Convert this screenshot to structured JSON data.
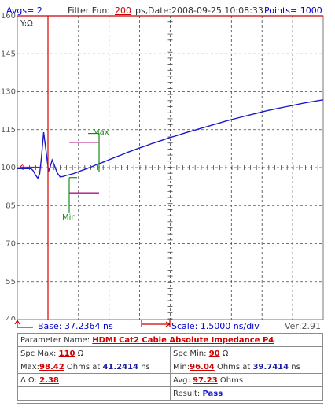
{
  "header": {
    "avgs": "Avgs= 2",
    "filter_label": "Filter Fun:",
    "filter_value": "200",
    "filter_unit": "ps,",
    "date": "Date:2008-09-25 10:08:33",
    "points": "Points= 1000"
  },
  "chart_data": {
    "type": "line",
    "ylabel": "Y:Ω",
    "ylim": [
      40,
      160
    ],
    "yticks": [
      "160",
      "145",
      "130",
      "115",
      "100",
      "85",
      "70",
      "55",
      "40"
    ],
    "series": [
      {
        "x": [
          0,
          4.5,
          5.2,
          6,
          6.7,
          7.3,
          7.9,
          8.6,
          9.4,
          10.2,
          10.8,
          11.4,
          12.1,
          13,
          14,
          15,
          16,
          17,
          18,
          19,
          20,
          22,
          24,
          26,
          28,
          30,
          32,
          34,
          36,
          38,
          40,
          42,
          44,
          46,
          48,
          50,
          52,
          54,
          56,
          58,
          60,
          62,
          64,
          66,
          68,
          70,
          72,
          74,
          76,
          78,
          80,
          82,
          84,
          86,
          88,
          90,
          92,
          94,
          96,
          98,
          100
        ],
        "y": [
          99.6,
          99.6,
          98.8,
          97.0,
          95.8,
          97.5,
          104.0,
          114.0,
          106.5,
          98.5,
          100.5,
          103.0,
          101.0,
          98.0,
          96.3,
          96.5,
          96.9,
          97.2,
          97.5,
          97.9,
          98.4,
          99.3,
          100.2,
          101.2,
          102.1,
          103.1,
          104.1,
          105.0,
          106.0,
          106.9,
          107.8,
          108.6,
          109.5,
          110.3,
          111.1,
          111.9,
          112.6,
          113.4,
          114.1,
          114.8,
          115.5,
          116.2,
          116.9,
          117.6,
          118.3,
          119.0,
          119.6,
          120.2,
          120.8,
          121.4,
          122.0,
          122.6,
          123.1,
          123.6,
          124.1,
          124.6,
          125.1,
          125.6,
          126.0,
          126.4,
          126.8
        ]
      }
    ],
    "spec_max": 110,
    "spec_min": 90,
    "max_label": "Max",
    "min_label": "Min"
  },
  "footer": {
    "base": "Base: 37.2364 ns",
    "scale": "Scale: 1.5000 ns/div",
    "version": "Ver:2.91"
  },
  "table": {
    "param_label": "Parameter Name:",
    "param_value": "HDMI Cat2 Cable Absolute Impedance P4",
    "spc_max_label": "Spc Max:",
    "spc_max_value": "110",
    "spc_max_unit": "Ω",
    "spc_min_label": "Spc Min:",
    "spc_min_value": "90",
    "spc_min_unit": "Ω",
    "max_label": "Max:",
    "max_value": "98.42",
    "max_mid": "Ohms at",
    "max_time": "41.2414",
    "max_unit": "ns",
    "min_label": "Min:",
    "min_value": "96.04",
    "min_mid": "Ohms at",
    "min_time": "39.7414",
    "min_unit": "ns",
    "delta_label": "Δ Ω:",
    "delta_value": "2.38",
    "avg_label": "Avg:",
    "avg_value": "97.23",
    "avg_unit": "Ohms",
    "result_label": "Result:",
    "result_value": "Pass"
  }
}
